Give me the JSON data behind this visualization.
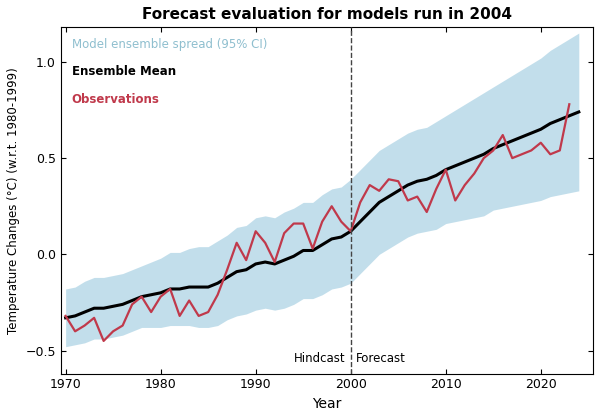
{
  "title": "Forecast evaluation for models run in 2004",
  "xlabel": "Year",
  "ylabel": "Temperature Changes (°C) (w.r.t. 1980-1999)",
  "xlim": [
    1969.5,
    2025.5
  ],
  "ylim": [
    -0.62,
    1.18
  ],
  "vline_x": 2000,
  "hindcast_label": "Hindcast",
  "forecast_label": "Forecast",
  "legend_ci": "Model ensemble spread (95% CI)",
  "legend_mean": "Ensemble Mean",
  "legend_obs": "Observations",
  "ci_color": "#b8d9e8",
  "mean_color": "#000000",
  "obs_color": "#c0394b",
  "ci_label_color": "#8fbfcf",
  "bg_color": "#f5f5f5",
  "years_model": [
    1970,
    1971,
    1972,
    1973,
    1974,
    1975,
    1976,
    1977,
    1978,
    1979,
    1980,
    1981,
    1982,
    1983,
    1984,
    1985,
    1986,
    1987,
    1988,
    1989,
    1990,
    1991,
    1992,
    1993,
    1994,
    1995,
    1996,
    1997,
    1998,
    1999,
    2000,
    2001,
    2002,
    2003,
    2004,
    2005,
    2006,
    2007,
    2008,
    2009,
    2010,
    2011,
    2012,
    2013,
    2014,
    2015,
    2016,
    2017,
    2018,
    2019,
    2020,
    2021,
    2022,
    2023,
    2024
  ],
  "ensemble_mean": [
    -0.33,
    -0.32,
    -0.3,
    -0.28,
    -0.28,
    -0.27,
    -0.26,
    -0.24,
    -0.22,
    -0.21,
    -0.2,
    -0.18,
    -0.18,
    -0.17,
    -0.17,
    -0.17,
    -0.15,
    -0.12,
    -0.09,
    -0.08,
    -0.05,
    -0.04,
    -0.05,
    -0.03,
    -0.01,
    0.02,
    0.02,
    0.05,
    0.08,
    0.09,
    0.12,
    0.17,
    0.22,
    0.27,
    0.3,
    0.33,
    0.36,
    0.38,
    0.39,
    0.41,
    0.44,
    0.46,
    0.48,
    0.5,
    0.52,
    0.55,
    0.57,
    0.59,
    0.61,
    0.63,
    0.65,
    0.68,
    0.7,
    0.72,
    0.74
  ],
  "ci_upper_hindcast": [
    -0.18,
    -0.17,
    -0.14,
    -0.12,
    -0.12,
    -0.11,
    -0.1,
    -0.08,
    -0.06,
    -0.04,
    -0.02,
    0.01,
    0.01,
    0.03,
    0.04,
    0.04,
    0.07,
    0.1,
    0.14,
    0.15,
    0.19,
    0.2,
    0.19,
    0.22,
    0.24,
    0.27,
    0.27,
    0.31,
    0.34,
    0.35,
    0.39,
    0.44,
    0.49,
    0.54,
    0.57,
    0.6,
    0.63,
    0.65,
    0.66,
    0.69,
    0.72,
    0.75,
    0.78,
    0.81,
    0.84,
    0.87,
    0.9,
    0.93,
    0.96,
    0.99,
    1.02,
    1.06,
    1.09,
    1.12,
    1.15
  ],
  "ci_lower_hindcast": [
    -0.48,
    -0.47,
    -0.46,
    -0.44,
    -0.44,
    -0.43,
    -0.42,
    -0.4,
    -0.38,
    -0.38,
    -0.38,
    -0.37,
    -0.37,
    -0.37,
    -0.38,
    -0.38,
    -0.37,
    -0.34,
    -0.32,
    -0.31,
    -0.29,
    -0.28,
    -0.29,
    -0.28,
    -0.26,
    -0.23,
    -0.23,
    -0.21,
    -0.18,
    -0.17,
    -0.15,
    -0.1,
    -0.05,
    -0.0,
    0.03,
    0.06,
    0.09,
    0.11,
    0.12,
    0.13,
    0.16,
    0.17,
    0.18,
    0.19,
    0.2,
    0.23,
    0.24,
    0.25,
    0.26,
    0.27,
    0.28,
    0.3,
    0.31,
    0.32,
    0.33
  ],
  "years_obs": [
    1970,
    1971,
    1972,
    1973,
    1974,
    1975,
    1976,
    1977,
    1978,
    1979,
    1980,
    1981,
    1982,
    1983,
    1984,
    1985,
    1986,
    1987,
    1988,
    1989,
    1990,
    1991,
    1992,
    1993,
    1994,
    1995,
    1996,
    1997,
    1998,
    1999,
    2000,
    2001,
    2002,
    2003,
    2004,
    2005,
    2006,
    2007,
    2008,
    2009,
    2010,
    2011,
    2012,
    2013,
    2014,
    2015,
    2016,
    2017,
    2018,
    2019,
    2020,
    2021,
    2022,
    2023
  ],
  "observations": [
    -0.32,
    -0.4,
    -0.37,
    -0.33,
    -0.45,
    -0.4,
    -0.37,
    -0.26,
    -0.22,
    -0.3,
    -0.22,
    -0.18,
    -0.32,
    -0.24,
    -0.32,
    -0.3,
    -0.21,
    -0.08,
    0.06,
    -0.03,
    0.12,
    0.06,
    -0.04,
    0.11,
    0.16,
    0.16,
    0.03,
    0.17,
    0.25,
    0.17,
    0.12,
    0.27,
    0.36,
    0.33,
    0.39,
    0.38,
    0.28,
    0.3,
    0.22,
    0.34,
    0.44,
    0.28,
    0.36,
    0.42,
    0.5,
    0.54,
    0.62,
    0.5,
    0.52,
    0.54,
    0.58,
    0.52,
    0.54,
    0.78
  ],
  "xticks": [
    1970,
    1980,
    1990,
    2000,
    2010,
    2020
  ],
  "yticks": [
    -0.5,
    0.0,
    0.5,
    1.0
  ]
}
